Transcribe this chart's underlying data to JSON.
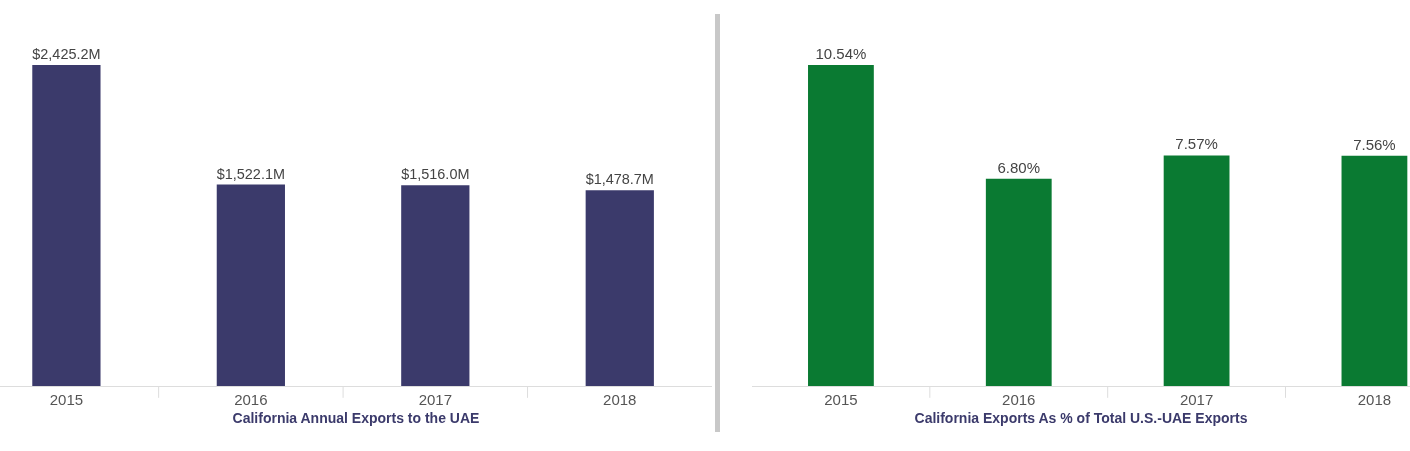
{
  "chart_data": [
    {
      "type": "bar",
      "xlabel": "California Annual Exports to the UAE",
      "categories": [
        "2015",
        "2016",
        "2017",
        "2018"
      ],
      "values": [
        2425.2,
        1522.1,
        1516.0,
        1478.7
      ],
      "value_labels": [
        "$2,425.2M",
        "$1,522.1M",
        "$1,516.0M",
        "$1,478.7M"
      ],
      "color": "#3b3a6b",
      "grid": false,
      "legend": false,
      "tick_labels": "x"
    },
    {
      "type": "bar",
      "xlabel": "California Exports As % of Total U.S.-UAE Exports",
      "categories": [
        "2015",
        "2016",
        "2017",
        "2018"
      ],
      "values": [
        10.54,
        6.8,
        7.57,
        7.56
      ],
      "value_labels": [
        "10.54%",
        "6.80%",
        "7.57%",
        "7.56%"
      ],
      "color": "#0a7a32",
      "grid": false,
      "legend": false,
      "tick_labels": "x"
    }
  ]
}
